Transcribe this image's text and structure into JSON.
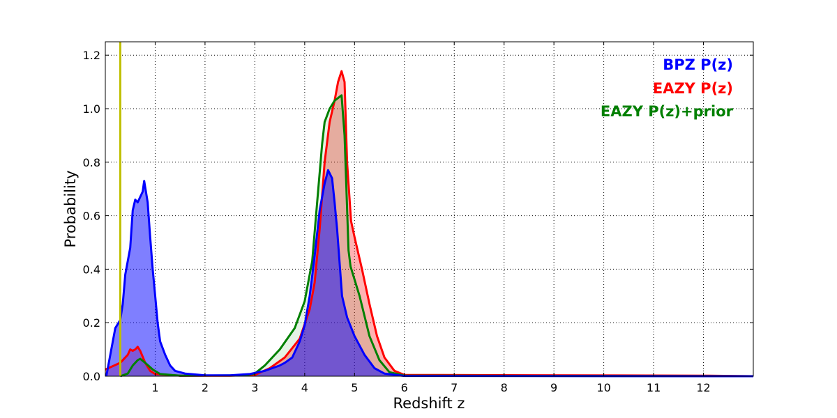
{
  "chart_data": {
    "type": "area",
    "title": "",
    "xlabel": "Redshift z",
    "ylabel": "Probability",
    "xlim": [
      0,
      13
    ],
    "ylim": [
      0,
      1.25
    ],
    "grid": true,
    "legend_placement": "top-right",
    "xticks": [
      1,
      2,
      3,
      4,
      5,
      6,
      7,
      8,
      9,
      10,
      11,
      12
    ],
    "xtick_labels": [
      "1",
      "2",
      "3",
      "4",
      "5",
      "6",
      "7",
      "8",
      "9",
      "10",
      "11",
      "12"
    ],
    "yticks": [
      0,
      0.2,
      0.4,
      0.6,
      0.8,
      1.0,
      1.2
    ],
    "ytick_labels": [
      "0.0",
      "0.2",
      "0.4",
      "0.6",
      "0.8",
      "1.0",
      "1.2"
    ],
    "vline": {
      "x": 0.3,
      "color": "#bfbf00"
    },
    "series": [
      {
        "name": "EAZY P(z)",
        "color": "#ff0000",
        "fill_opacity": 0.3,
        "x": [
          0,
          0.3,
          0.45,
          0.5,
          0.55,
          0.6,
          0.65,
          0.7,
          0.8,
          0.9,
          1.0,
          1.5,
          2.5,
          3.0,
          3.3,
          3.6,
          3.9,
          4.1,
          4.2,
          4.3,
          4.4,
          4.5,
          4.6,
          4.67,
          4.74,
          4.8,
          4.85,
          4.93,
          5.0,
          5.15,
          5.3,
          5.45,
          5.6,
          5.8,
          6.0,
          12,
          13
        ],
        "y": [
          0.025,
          0.05,
          0.08,
          0.1,
          0.095,
          0.1,
          0.11,
          0.095,
          0.05,
          0.02,
          0.008,
          0.002,
          0.002,
          0.005,
          0.03,
          0.07,
          0.14,
          0.25,
          0.35,
          0.55,
          0.8,
          0.95,
          1.03,
          1.1,
          1.14,
          1.1,
          0.8,
          0.58,
          0.52,
          0.4,
          0.27,
          0.15,
          0.07,
          0.02,
          0.005,
          0.002,
          0.0
        ]
      },
      {
        "name": "EAZY P(z)+prior",
        "color": "#008000",
        "fill_opacity": 0.1,
        "x": [
          0.3,
          0.45,
          0.55,
          0.65,
          0.7,
          0.8,
          0.95,
          1.1,
          1.5,
          2.8,
          3.0,
          3.2,
          3.5,
          3.8,
          4.0,
          4.15,
          4.25,
          4.35,
          4.4,
          4.5,
          4.6,
          4.74,
          4.8,
          4.88,
          4.92,
          5.1,
          5.3,
          5.5,
          5.7,
          6.0,
          13
        ],
        "y": [
          0,
          0.01,
          0.04,
          0.06,
          0.065,
          0.05,
          0.025,
          0.008,
          0.002,
          0.003,
          0.01,
          0.04,
          0.1,
          0.18,
          0.28,
          0.43,
          0.65,
          0.87,
          0.95,
          1.0,
          1.03,
          1.05,
          0.9,
          0.47,
          0.41,
          0.3,
          0.15,
          0.06,
          0.015,
          0.002,
          0
        ]
      },
      {
        "name": "BPZ P(z)",
        "color": "#0000ff",
        "fill_opacity": 0.5,
        "x": [
          0.02,
          0.2,
          0.3,
          0.35,
          0.4,
          0.5,
          0.55,
          0.6,
          0.65,
          0.7,
          0.75,
          0.78,
          0.85,
          0.9,
          0.95,
          1.0,
          1.05,
          1.1,
          1.2,
          1.3,
          1.4,
          1.6,
          2.0,
          2.5,
          2.9,
          3.2,
          3.5,
          3.6,
          3.75,
          3.9,
          4.0,
          4.1,
          4.2,
          4.3,
          4.4,
          4.47,
          4.55,
          4.6,
          4.65,
          4.75,
          4.85,
          5.0,
          5.2,
          5.4,
          5.6,
          6.0,
          13
        ],
        "y": [
          0,
          0.18,
          0.21,
          0.27,
          0.38,
          0.48,
          0.62,
          0.66,
          0.65,
          0.67,
          0.69,
          0.73,
          0.65,
          0.52,
          0.4,
          0.3,
          0.2,
          0.13,
          0.08,
          0.04,
          0.02,
          0.01,
          0.003,
          0.003,
          0.008,
          0.02,
          0.04,
          0.05,
          0.07,
          0.13,
          0.19,
          0.3,
          0.45,
          0.62,
          0.72,
          0.77,
          0.74,
          0.65,
          0.55,
          0.3,
          0.22,
          0.15,
          0.08,
          0.03,
          0.01,
          0.001,
          0.0
        ]
      }
    ],
    "legend": [
      "BPZ P(z)",
      "EAZY P(z)",
      "EAZY P(z)+prior"
    ]
  }
}
